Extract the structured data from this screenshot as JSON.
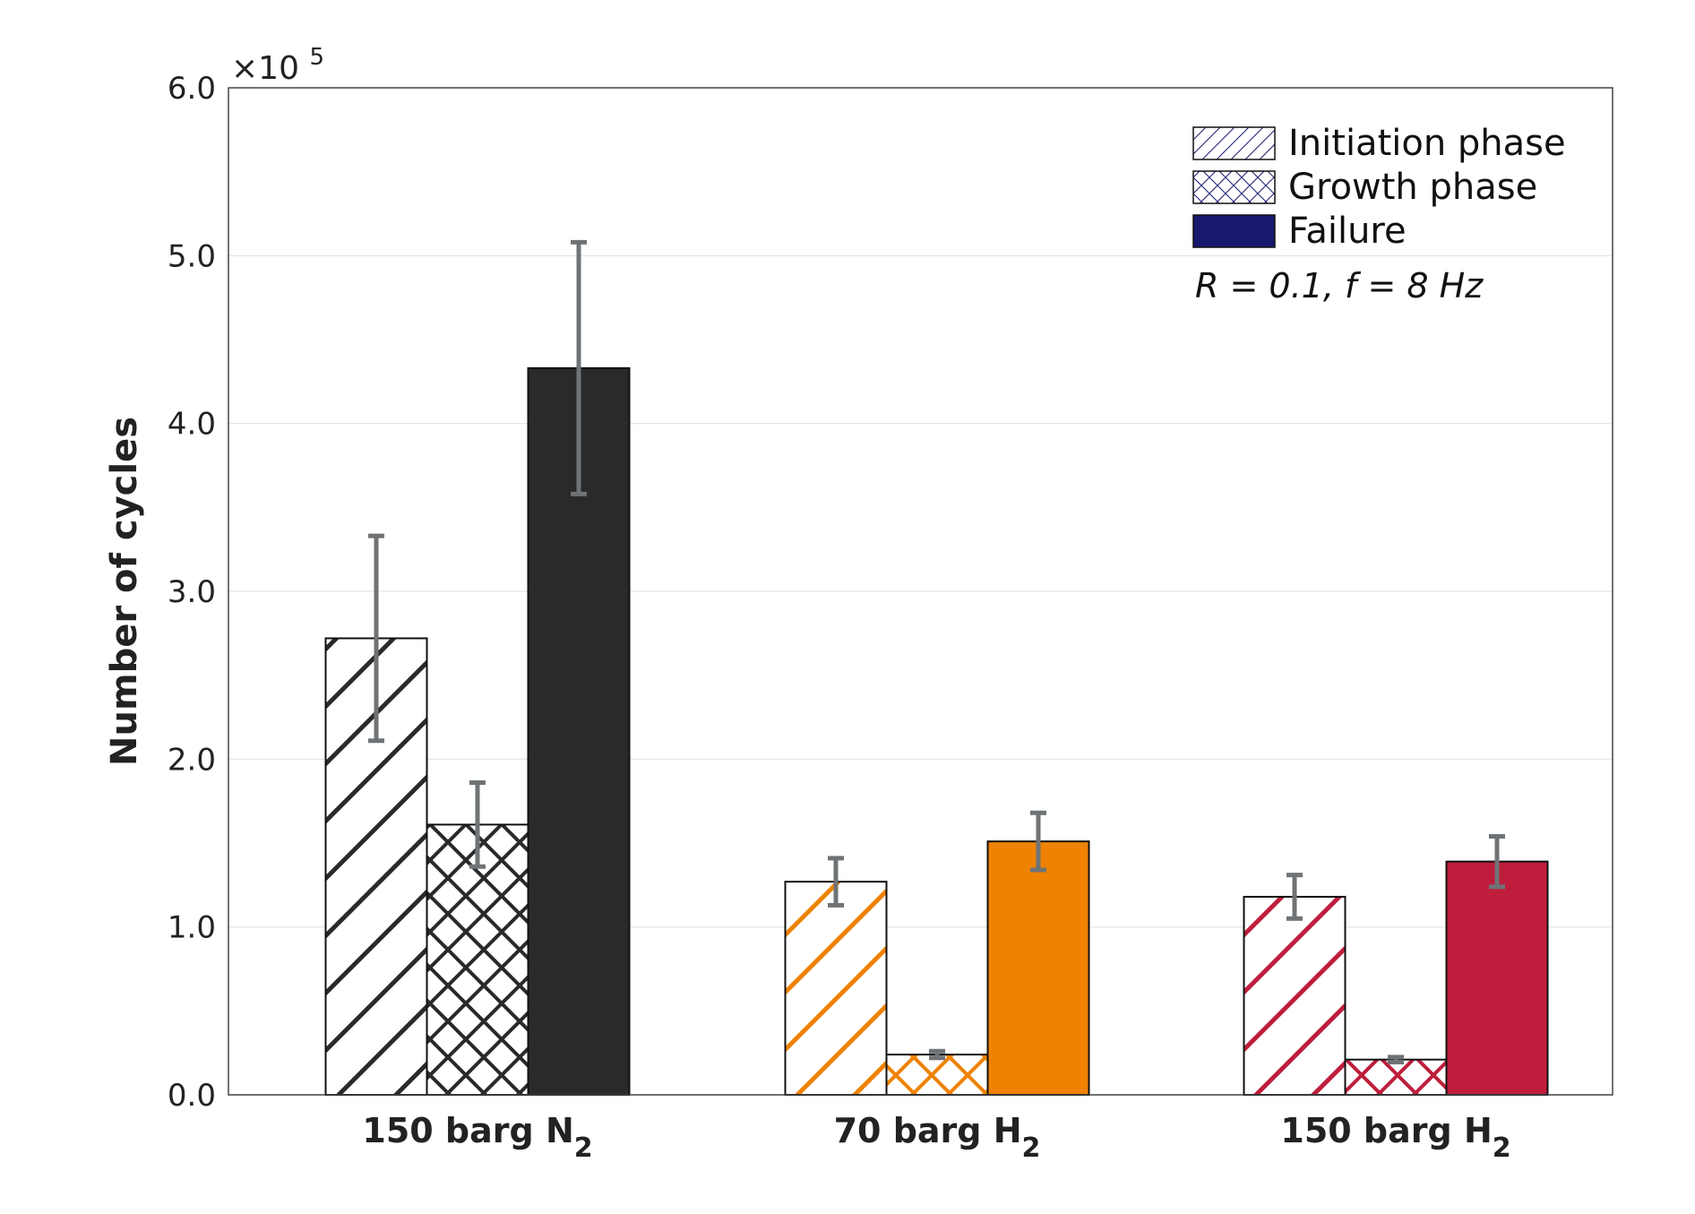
{
  "chart_data": {
    "type": "bar",
    "title": "",
    "xlabel": "",
    "ylabel": "Number of cycles",
    "y_multiplier": "×10",
    "y_multiplier_exp": "5",
    "ylim": [
      0,
      6.0
    ],
    "y_ticks": [
      "0.0",
      "1.0",
      "2.0",
      "3.0",
      "4.0",
      "5.0",
      "6.0"
    ],
    "grid": true,
    "categories": [
      {
        "label": "150 barg N",
        "sub": "2",
        "color": "#2a2a2a"
      },
      {
        "label": "70 barg H",
        "sub": "2",
        "color": "#ef8200"
      },
      {
        "label": "150 barg H",
        "sub": "2",
        "color": "#be1e3c"
      }
    ],
    "series": [
      {
        "name": "Initiation phase",
        "pattern": "diagonal",
        "values": [
          2.72,
          1.27,
          1.18
        ],
        "errors": [
          0.61,
          0.14,
          0.13
        ]
      },
      {
        "name": "Growth phase",
        "pattern": "crosshatch",
        "values": [
          1.61,
          0.24,
          0.21
        ],
        "errors": [
          0.25,
          0.02,
          0.015
        ]
      },
      {
        "name": "Failure",
        "pattern": "solid",
        "values": [
          4.33,
          1.51,
          1.39
        ],
        "errors": [
          0.75,
          0.17,
          0.15
        ]
      }
    ],
    "legend": {
      "position": "top-right",
      "swatch_color": "#18196e",
      "items": [
        "Initiation phase",
        "Growth phase",
        "Failure"
      ]
    },
    "annotation": "R = 0.1, f = 8 Hz",
    "error_bar_color": "#6f7376"
  }
}
